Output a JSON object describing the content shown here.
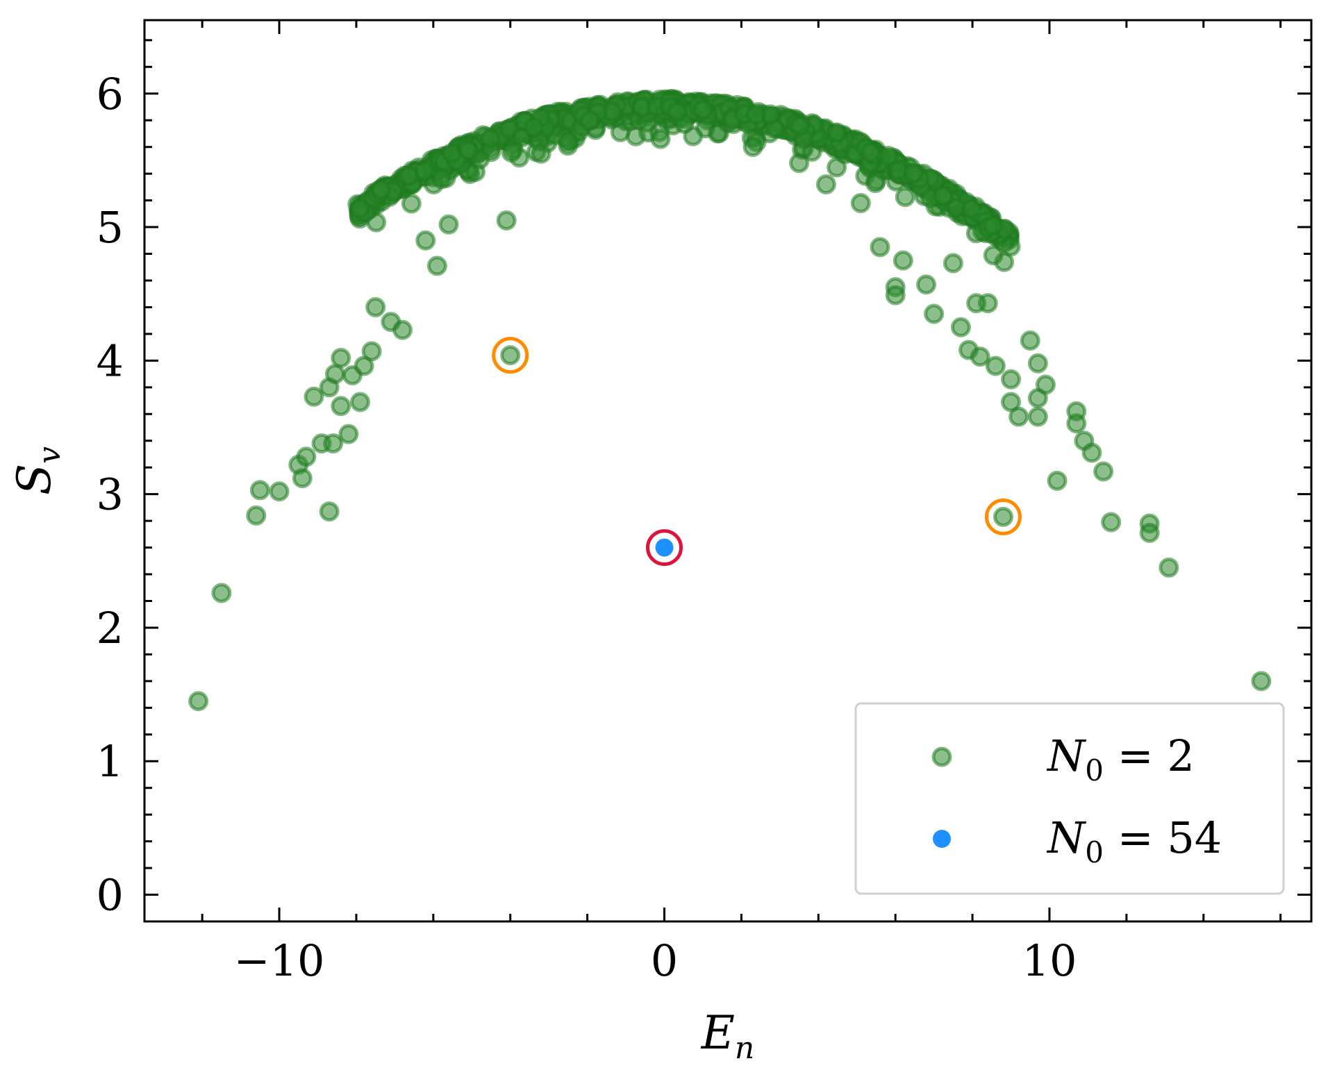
{
  "chart_data": {
    "type": "scatter",
    "title": "",
    "xlabel": {
      "main": "E",
      "sub": "n"
    },
    "ylabel": {
      "main": "S",
      "sub": "v"
    },
    "xlim": [
      -13.5,
      16.8
    ],
    "ylim": [
      -0.2,
      6.55
    ],
    "xticks": [
      -10,
      0,
      10
    ],
    "xtick_labels": [
      "−10",
      "0",
      "10"
    ],
    "yticks": [
      0,
      1,
      2,
      3,
      4,
      5,
      6
    ],
    "ytick_labels": [
      "0",
      "1",
      "2",
      "3",
      "4",
      "5",
      "6"
    ],
    "x_minor_step": 2,
    "y_minor_step": 0.2,
    "grid": false,
    "legend_position": "bottom-right",
    "colors": {
      "n0_2": "#2e8b2e",
      "n0_2_edge": "#1f7a1f",
      "n0_54": "#1e90ff",
      "highlight_orange": "#ff8c00",
      "highlight_red": "#dc143c"
    },
    "series": [
      {
        "name": "N0 = 2",
        "legend_label": {
          "main": "N",
          "sub": "0",
          "rest": " = 2"
        },
        "marker": "green-ringed-dot",
        "band_note": "dense band of points following S = 5.9 - 0.0123*E^2 between E=-8 and E=9",
        "band_params": {
          "x_min": -8,
          "x_max": 9,
          "peak": 5.9,
          "curvature": 0.0123,
          "count": 900
        },
        "points": [
          [
            -12.1,
            1.45
          ],
          [
            -11.5,
            2.26
          ],
          [
            -10.6,
            2.84
          ],
          [
            -10.5,
            3.03
          ],
          [
            -10.0,
            3.02
          ],
          [
            -9.5,
            3.22
          ],
          [
            -9.4,
            3.12
          ],
          [
            -9.3,
            3.28
          ],
          [
            -9.1,
            3.73
          ],
          [
            -8.9,
            3.38
          ],
          [
            -8.7,
            2.87
          ],
          [
            -8.7,
            3.8
          ],
          [
            -8.6,
            3.38
          ],
          [
            -8.55,
            3.9
          ],
          [
            -8.4,
            4.02
          ],
          [
            -8.4,
            3.66
          ],
          [
            -8.2,
            3.45
          ],
          [
            -8.1,
            3.89
          ],
          [
            -7.9,
            3.69
          ],
          [
            -7.8,
            3.96
          ],
          [
            -7.6,
            4.07
          ],
          [
            -7.1,
            4.29
          ],
          [
            -6.8,
            4.23
          ],
          [
            -5.9,
            4.71
          ],
          [
            -4.1,
            5.05
          ],
          [
            -4.0,
            4.04
          ],
          [
            -0.1,
            5.66
          ],
          [
            2.3,
            5.6
          ],
          [
            5.6,
            4.85
          ],
          [
            6.0,
            4.55
          ],
          [
            6.0,
            4.49
          ],
          [
            6.2,
            4.75
          ],
          [
            6.8,
            4.57
          ],
          [
            7.0,
            4.35
          ],
          [
            7.7,
            4.25
          ],
          [
            7.9,
            4.08
          ],
          [
            8.2,
            4.03
          ],
          [
            8.6,
            3.96
          ],
          [
            8.8,
            2.83
          ],
          [
            9.0,
            3.86
          ],
          [
            9.0,
            3.69
          ],
          [
            9.2,
            3.58
          ],
          [
            9.5,
            4.15
          ],
          [
            9.7,
            3.72
          ],
          [
            9.7,
            3.98
          ],
          [
            9.7,
            3.58
          ],
          [
            9.9,
            3.82
          ],
          [
            10.2,
            3.1
          ],
          [
            10.7,
            3.62
          ],
          [
            10.7,
            3.53
          ],
          [
            10.9,
            3.4
          ],
          [
            11.1,
            3.31
          ],
          [
            11.4,
            3.17
          ],
          [
            11.6,
            2.79
          ],
          [
            12.6,
            2.78
          ],
          [
            12.6,
            2.71
          ],
          [
            13.1,
            2.45
          ],
          [
            15.5,
            1.6
          ],
          [
            8.4,
            4.43
          ],
          [
            7.5,
            4.73
          ],
          [
            -6.2,
            4.9
          ],
          [
            -5.6,
            5.02
          ],
          [
            -2.5,
            5.64
          ],
          [
            1.0,
            5.88
          ],
          [
            3.5,
            5.48
          ],
          [
            4.2,
            5.32
          ],
          [
            5.1,
            5.18
          ],
          [
            -3.2,
            5.55
          ],
          [
            8.1,
            4.43
          ],
          [
            -7.5,
            4.4
          ]
        ]
      },
      {
        "name": "N0 = 54",
        "legend_label": {
          "main": "N",
          "sub": "0",
          "rest": " = 54"
        },
        "marker": "blue-dot",
        "points": [
          [
            0.0,
            2.6
          ]
        ]
      }
    ],
    "highlights": [
      {
        "name": "orange-circle",
        "x": -4.0,
        "y": 4.04,
        "color": "orange"
      },
      {
        "name": "orange-circle",
        "x": 8.8,
        "y": 2.83,
        "color": "orange"
      },
      {
        "name": "red-circle",
        "x": 0.0,
        "y": 2.6,
        "color": "red"
      }
    ]
  }
}
